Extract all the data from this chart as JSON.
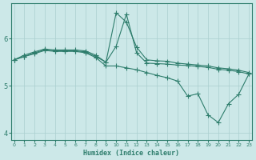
{
  "xlabel": "Humidex (Indice chaleur)",
  "x": [
    0,
    1,
    2,
    3,
    4,
    5,
    6,
    7,
    8,
    9,
    10,
    11,
    12,
    13,
    14,
    15,
    16,
    17,
    18,
    19,
    20,
    21,
    22,
    23
  ],
  "line_spike": [
    5.55,
    5.65,
    5.72,
    5.78,
    5.76,
    5.76,
    5.76,
    5.74,
    5.65,
    5.5,
    6.55,
    6.35,
    5.82,
    5.55,
    5.53,
    5.52,
    5.48,
    5.46,
    5.44,
    5.42,
    5.38,
    5.36,
    5.33,
    5.28
  ],
  "line_mid": [
    5.55,
    5.62,
    5.7,
    5.76,
    5.74,
    5.74,
    5.74,
    5.72,
    5.62,
    5.5,
    5.84,
    6.52,
    5.7,
    5.48,
    5.47,
    5.46,
    5.44,
    5.43,
    5.41,
    5.39,
    5.35,
    5.33,
    5.3,
    5.25
  ],
  "line_low": [
    5.55,
    5.62,
    5.68,
    5.75,
    5.73,
    5.73,
    5.73,
    5.7,
    5.6,
    5.42,
    5.42,
    5.38,
    5.34,
    5.28,
    5.22,
    5.17,
    5.1,
    4.78,
    4.83,
    4.38,
    4.22,
    4.62,
    4.82,
    5.25
  ],
  "color": "#2e7d6c",
  "bg_color": "#cce8e8",
  "grid_color": "#aacfcf",
  "ylim": [
    3.85,
    6.75
  ],
  "yticks": [
    4,
    5,
    6
  ],
  "xticks": [
    0,
    1,
    2,
    3,
    4,
    5,
    6,
    7,
    8,
    9,
    10,
    11,
    12,
    13,
    14,
    15,
    16,
    17,
    18,
    19,
    20,
    21,
    22,
    23
  ]
}
